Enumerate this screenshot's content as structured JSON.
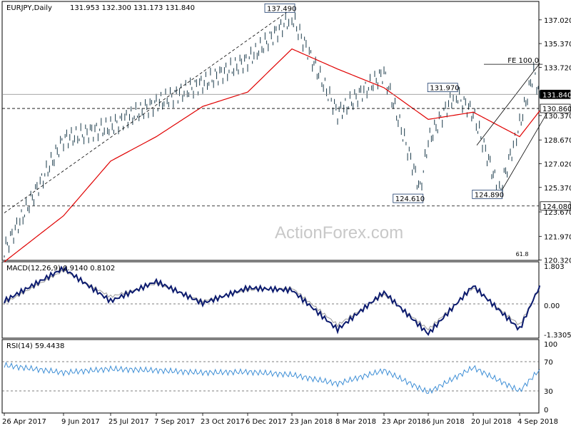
{
  "header": {
    "symbol": "EURJPY,Daily",
    "ohlc": "131.953 132.300 131.173 131.840"
  },
  "watermark": "ActionForex.com",
  "colors": {
    "price_bars": "#1a3a4a",
    "moving_average": "#e00000",
    "macd_line": "#0b1a6e",
    "macd_signal": "#9a9a9a",
    "rsi_line": "#3f8fd6",
    "level_line": "#000000",
    "grid_level": "#888888"
  },
  "chart_data": [
    {
      "type": "line",
      "panel": "price",
      "title": "EURJPY,Daily",
      "x_tick_labels": [
        "26 Apr 2017",
        "9 Jun 2017",
        "25 Jul 2017",
        "7 Sep 2017",
        "23 Oct 2017",
        "6 Dec 2017",
        "23 Jan 2018",
        "8 Mar 2018",
        "23 Apr 2018",
        "6 Jun 2018",
        "20 Jul 2018",
        "4 Sep 2018"
      ],
      "y_tick_labels": [
        "137.020",
        "135.370",
        "133.720",
        "130.370",
        "128.670",
        "127.020",
        "125.370",
        "123.670",
        "121.970",
        "120.320"
      ],
      "ylim": [
        120.3,
        138.3
      ],
      "grid": false,
      "current_price": "131.840",
      "horizontal_levels": [
        {
          "value": 131.84,
          "label": "131.840",
          "style": "solid"
        },
        {
          "value": 130.86,
          "label": "130.860",
          "style": "dashed"
        },
        {
          "value": 124.08,
          "label": "124.080",
          "style": "dashed"
        }
      ],
      "annotations": [
        {
          "text": "137.490",
          "x": "23 Jan 2018",
          "y": 137.49
        },
        {
          "text": "131.970",
          "x": "2 Jul 2018",
          "y": 131.97
        },
        {
          "text": "124.610",
          "x": "29 May 2018",
          "y": 124.61
        },
        {
          "text": "124.890",
          "x": "15 Aug 2018",
          "y": 124.89
        },
        {
          "text": "FE 100.0",
          "x": "12 Sep 2018",
          "y": 133.93
        },
        {
          "text": "61.8",
          "x": "20 Sep 2018",
          "y": 120.5
        }
      ],
      "series": [
        {
          "name": "EURJPY",
          "x": [
            "26 Apr 2017",
            "9 Jun 2017",
            "25 Jul 2017",
            "7 Sep 2017",
            "23 Oct 2017",
            "6 Dec 2017",
            "23 Jan 2018",
            "8 Mar 2018",
            "23 Apr 2018",
            "29 May 2018",
            "6 Jun 2018",
            "2 Jul 2018",
            "20 Jul 2018",
            "15 Aug 2018",
            "4 Sep 2018",
            "18 Sep 2018",
            "24 Sep 2018"
          ],
          "values": [
            121.0,
            128.7,
            129.6,
            131.2,
            132.6,
            134.2,
            137.2,
            130.5,
            133.3,
            125.2,
            128.6,
            131.9,
            130.5,
            125.0,
            129.7,
            133.4,
            131.84
          ]
        },
        {
          "name": "MA",
          "x": [
            "26 Apr 2017",
            "9 Jun 2017",
            "25 Jul 2017",
            "7 Sep 2017",
            "23 Oct 2017",
            "6 Dec 2017",
            "23 Jan 2018",
            "8 Mar 2018",
            "23 Apr 2018",
            "6 Jun 2018",
            "20 Jul 2018",
            "4 Sep 2018",
            "24 Sep 2018"
          ],
          "values": [
            120.2,
            123.4,
            127.2,
            128.9,
            131.0,
            132.0,
            135.0,
            133.6,
            132.3,
            130.1,
            130.6,
            128.9,
            130.7
          ]
        }
      ]
    },
    {
      "type": "line",
      "panel": "macd",
      "title": "MACD(12,26,9) 0.9140 0.8102",
      "y_tick_labels": [
        "1.803",
        "0.00",
        "-1.3305"
      ],
      "ylim": [
        -1.5,
        2.0
      ],
      "series": [
        {
          "name": "MACD",
          "x": [
            "26 Apr 2017",
            "9 Jun 2017",
            "25 Jul 2017",
            "7 Sep 2017",
            "23 Oct 2017",
            "6 Dec 2017",
            "23 Jan 2018",
            "8 Mar 2018",
            "23 Apr 2018",
            "6 Jun 2018",
            "20 Jul 2018",
            "4 Sep 2018",
            "24 Sep 2018"
          ],
          "values": [
            0.2,
            1.7,
            0.2,
            1.1,
            0.1,
            0.8,
            0.7,
            -1.1,
            0.6,
            -1.3,
            0.9,
            -1.1,
            0.91
          ]
        },
        {
          "name": "Signal",
          "x": [
            "26 Apr 2017",
            "9 Jun 2017",
            "25 Jul 2017",
            "7 Sep 2017",
            "23 Oct 2017",
            "6 Dec 2017",
            "23 Jan 2018",
            "8 Mar 2018",
            "23 Apr 2018",
            "6 Jun 2018",
            "20 Jul 2018",
            "4 Sep 2018",
            "24 Sep 2018"
          ],
          "values": [
            0.1,
            1.6,
            0.4,
            1.0,
            0.2,
            0.7,
            0.8,
            -0.9,
            0.5,
            -1.1,
            0.8,
            -0.9,
            0.81
          ]
        }
      ]
    },
    {
      "type": "line",
      "panel": "rsi",
      "title": "RSI(14) 59.4438",
      "y_tick_labels": [
        "100",
        "70",
        "30",
        "0"
      ],
      "ylim": [
        0,
        100
      ],
      "series": [
        {
          "name": "RSI",
          "x": [
            "26 Apr 2017",
            "9 Jun 2017",
            "25 Jul 2017",
            "7 Sep 2017",
            "23 Oct 2017",
            "6 Dec 2017",
            "23 Jan 2018",
            "8 Mar 2018",
            "23 Apr 2018",
            "6 Jun 2018",
            "20 Jul 2018",
            "4 Sep 2018",
            "24 Sep 2018"
          ],
          "values": [
            65,
            55,
            60,
            58,
            55,
            56,
            52,
            40,
            58,
            28,
            62,
            30,
            59.44
          ]
        }
      ]
    }
  ]
}
